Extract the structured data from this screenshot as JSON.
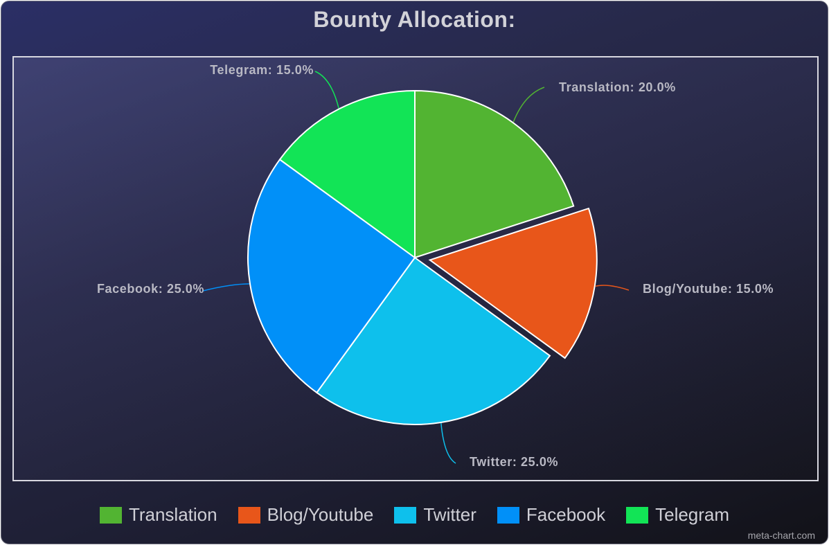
{
  "chart_data": {
    "type": "pie",
    "title": "Bounty Allocation:",
    "categories": [
      "Translation",
      "Blog/Youtube",
      "Twitter",
      "Facebook",
      "Telegram"
    ],
    "values": [
      20.0,
      15.0,
      25.0,
      25.0,
      15.0
    ],
    "data_labels": [
      "Translation: 20.0%",
      "Blog/Youtube: 15.0%",
      "Twitter: 25.0%",
      "Facebook: 25.0%",
      "Telegram: 15.0%"
    ],
    "colors": [
      "#52b432",
      "#e8561a",
      "#0ec0ec",
      "#0190f8",
      "#12e456"
    ],
    "exploded_slice": "Blog/Youtube",
    "legend_position": "bottom",
    "watermark": "meta-chart.com"
  }
}
